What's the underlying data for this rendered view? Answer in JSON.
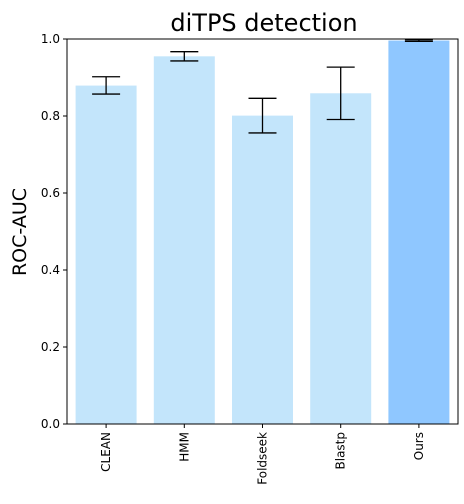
{
  "chart_data": {
    "type": "bar",
    "title": "diTPS detection",
    "xlabel": "",
    "ylabel": "ROC-AUC",
    "categories": [
      "CLEAN",
      "HMM",
      "Foldseek",
      "Blastp",
      "Ours"
    ],
    "values": [
      0.879,
      0.955,
      0.801,
      0.859,
      0.996
    ],
    "error_low": [
      0.857,
      0.943,
      0.756,
      0.791,
      0.994
    ],
    "error_high": [
      0.902,
      0.967,
      0.846,
      0.927,
      0.998
    ],
    "colors": [
      "#c3e5fb",
      "#c3e5fb",
      "#c3e5fb",
      "#c3e5fb",
      "#8fc7ff"
    ],
    "ylim": [
      0.0,
      1.0
    ],
    "yticks": [
      "0.0",
      "0.2",
      "0.4",
      "0.6",
      "0.8",
      "1.0"
    ],
    "ytick_values": [
      0.0,
      0.2,
      0.4,
      0.6,
      0.8,
      1.0
    ],
    "grid": false,
    "legend": "none"
  }
}
